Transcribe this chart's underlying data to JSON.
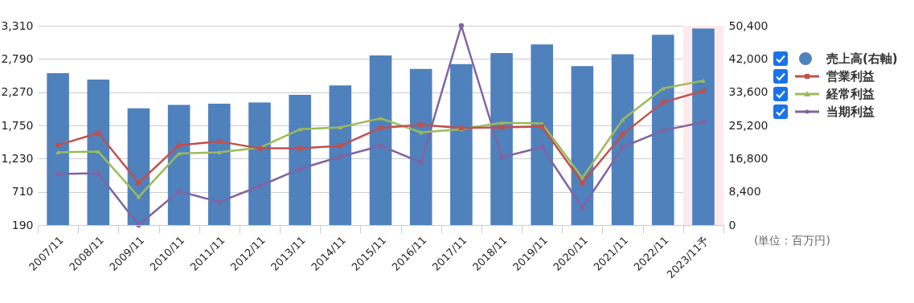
{
  "chart_data": {
    "type": "bar",
    "categories": [
      "2007/11",
      "2008/11",
      "2009/11",
      "2010/11",
      "2011/11",
      "2012/11",
      "2013/11",
      "2014/11",
      "2015/11",
      "2016/11",
      "2017/11",
      "2018/11",
      "2019/11",
      "2020/11",
      "2021/11",
      "2022/11",
      "2023/11予"
    ],
    "series": [
      {
        "name": "売上高(右軸)",
        "axis": "y2",
        "color": "#4f81bd",
        "values": [
          38400,
          36800,
          29500,
          30400,
          30700,
          31000,
          32900,
          35300,
          42900,
          39500,
          40700,
          43500,
          45700,
          40200,
          43200,
          48100,
          49700
        ]
      },
      {
        "name": "営業利益",
        "type": "line",
        "marker": "square",
        "color": "#c0504d",
        "values": [
          1440,
          1630,
          850,
          1440,
          1500,
          1390,
          1390,
          1430,
          1710,
          1760,
          1710,
          1720,
          1730,
          850,
          1610,
          2110,
          2290
        ]
      },
      {
        "name": "経常利益",
        "type": "line",
        "marker": "triangle",
        "color": "#9bbb59",
        "values": [
          1330,
          1340,
          630,
          1310,
          1330,
          1400,
          1690,
          1720,
          1860,
          1640,
          1690,
          1790,
          1780,
          930,
          1840,
          2330,
          2450
        ]
      },
      {
        "name": "当期利益",
        "type": "line",
        "marker": "circle",
        "color": "#8064a2",
        "values": [
          990,
          1000,
          190,
          720,
          550,
          800,
          1070,
          1260,
          1430,
          1170,
          3310,
          1250,
          1410,
          460,
          1410,
          1670,
          1800
        ]
      }
    ],
    "ylim": [
      190,
      3310
    ],
    "yticks": [
      190,
      710,
      {
        "value": 1230,
        "label": "1,230"
      },
      {
        "value": 1750,
        "label": "1,750"
      },
      {
        "value": 2270,
        "label": "2,270"
      },
      {
        "value": 2790,
        "label": "2,790"
      },
      {
        "value": 3310,
        "label": "3,310"
      }
    ],
    "y2lim": [
      0,
      50400
    ],
    "y2ticks": [
      0,
      {
        "value": 8400,
        "label": "8,400"
      },
      {
        "value": 16800,
        "label": "16,800"
      },
      {
        "value": 25200,
        "label": "25,200"
      },
      {
        "value": 33600,
        "label": "33,600"
      },
      {
        "value": 42000,
        "label": "42,000"
      },
      {
        "value": 50400,
        "label": "50,400"
      }
    ],
    "bands": [
      {
        "axis": "x",
        "from": "2023/11予",
        "to": "2023/11予",
        "color": "#fdeaea"
      }
    ],
    "grid": "y",
    "legend": "right",
    "line_style": "solid",
    "annotations": [
      "(単位：百万円)"
    ]
  }
}
